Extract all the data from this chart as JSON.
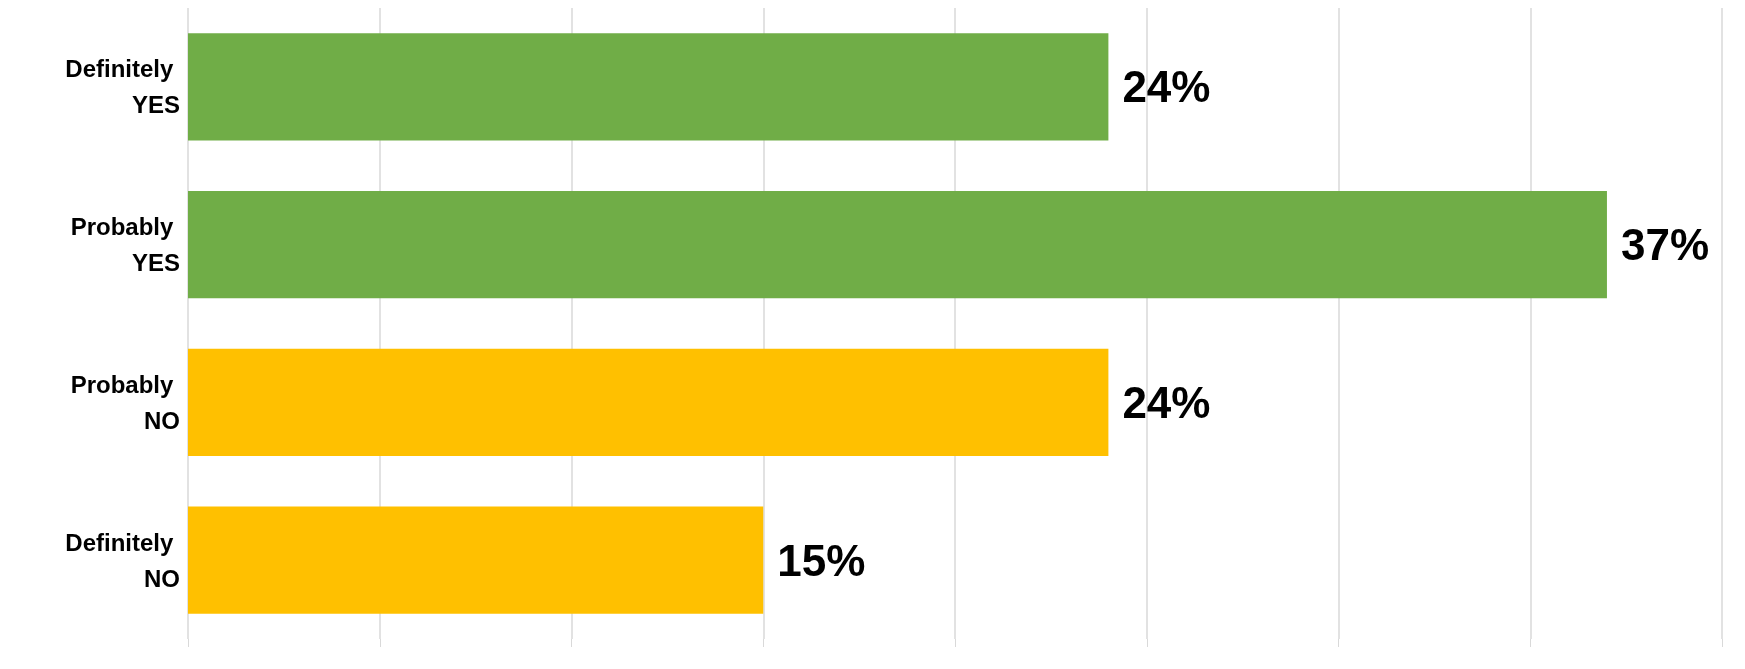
{
  "chart_data": {
    "type": "bar",
    "orientation": "horizontal",
    "categories": [
      "Definitely YES",
      "Probably YES",
      "Probably NO",
      "Definitely NO"
    ],
    "values": [
      24,
      37,
      24,
      15
    ],
    "colors": [
      "#70ad47",
      "#70ad47",
      "#ffc000",
      "#ffc000"
    ],
    "value_labels": [
      "24%",
      "37%",
      "24%",
      "15%"
    ],
    "xlim": [
      0,
      40
    ],
    "xticks": [
      {
        "value": 0,
        "label": null
      },
      {
        "value": 5,
        "label": null
      },
      {
        "value": 10,
        "label": null
      },
      {
        "value": 15,
        "label": null
      },
      {
        "value": 20,
        "label": null
      },
      {
        "value": 25,
        "label": null
      },
      {
        "value": 30,
        "label": null
      },
      {
        "value": 35,
        "label": null
      },
      {
        "value": 40,
        "label": null
      }
    ],
    "grid": "x",
    "tick_labels": "y"
  }
}
